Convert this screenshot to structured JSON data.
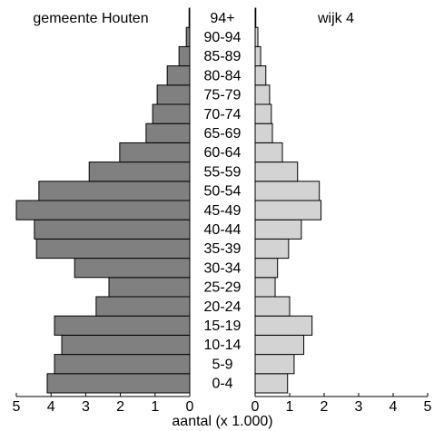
{
  "chart_data": {
    "type": "pyramid",
    "categories": [
      "0-4",
      "5-9",
      "10-14",
      "15-19",
      "20-24",
      "25-29",
      "30-34",
      "35-39",
      "40-44",
      "45-49",
      "50-54",
      "55-59",
      "60-64",
      "65-69",
      "70-74",
      "75-79",
      "80-84",
      "85-89",
      "90-94",
      "94+"
    ],
    "series": [
      {
        "name": "gemeente Houten",
        "color": "#808080",
        "values": [
          4.11,
          3.9,
          3.69,
          3.9,
          2.7,
          2.33,
          3.32,
          4.42,
          4.48,
          5.0,
          4.35,
          2.9,
          2.02,
          1.26,
          1.07,
          0.94,
          0.65,
          0.31,
          0.1,
          0.02
        ]
      },
      {
        "name": "wijk 4",
        "color": "#d3d3d3",
        "values": [
          0.94,
          1.13,
          1.41,
          1.65,
          1.0,
          0.58,
          0.65,
          0.97,
          1.34,
          1.91,
          1.86,
          1.23,
          0.79,
          0.5,
          0.47,
          0.42,
          0.31,
          0.16,
          0.08,
          0.02
        ]
      }
    ],
    "xlabel": "aantal (x 1.000)",
    "xlim": [
      0,
      5
    ],
    "xticks": [
      0,
      1,
      2,
      3,
      4,
      5
    ]
  }
}
